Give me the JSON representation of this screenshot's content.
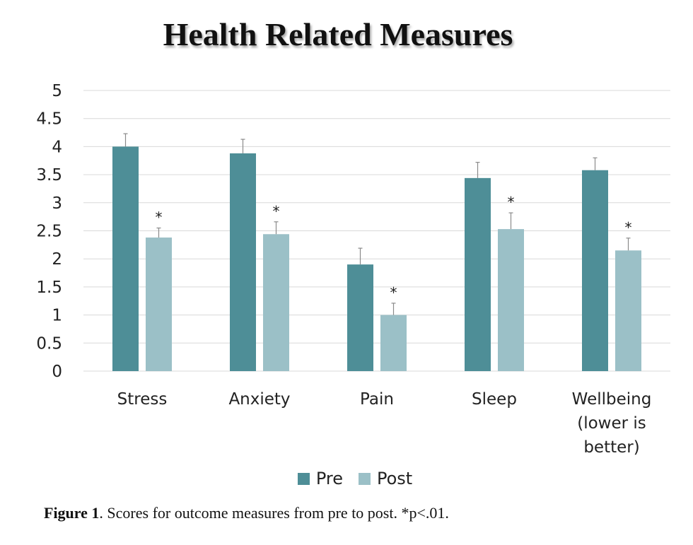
{
  "colors": {
    "pre": "#4e8e97",
    "post": "#9bc0c7",
    "grid": "#d9d9d9",
    "error_bar": "#8a8a8a"
  },
  "chart_data": {
    "type": "bar",
    "title": "Health Related Measures",
    "categories": [
      [
        "Stress"
      ],
      [
        "Anxiety"
      ],
      [
        "Pain"
      ],
      [
        "Sleep"
      ],
      [
        "Wellbeing",
        "(lower is",
        "better)"
      ]
    ],
    "series": [
      {
        "name": "Pre",
        "values": [
          4.0,
          3.88,
          1.9,
          3.44,
          3.58
        ],
        "errors": [
          0.23,
          0.25,
          0.29,
          0.28,
          0.22
        ]
      },
      {
        "name": "Post",
        "values": [
          2.38,
          2.44,
          1.0,
          2.53,
          2.15
        ],
        "errors": [
          0.17,
          0.22,
          0.21,
          0.29,
          0.22
        ]
      }
    ],
    "significance_marker": "*",
    "significant": [
      true,
      true,
      true,
      true,
      true
    ],
    "ylim": [
      0,
      5
    ],
    "yticks": [
      "0",
      "0.5",
      "1",
      "1.5",
      "2",
      "2.5",
      "3",
      "3.5",
      "4",
      "4.5",
      "5"
    ],
    "xlabel": "",
    "ylabel": "",
    "grid": true,
    "legend": "bottom-center"
  },
  "legend": {
    "pre_label": "Pre",
    "post_label": "Post"
  },
  "caption": {
    "label": "Figure 1",
    "text": ". Scores for outcome measures from pre to post.  *p<.01."
  }
}
